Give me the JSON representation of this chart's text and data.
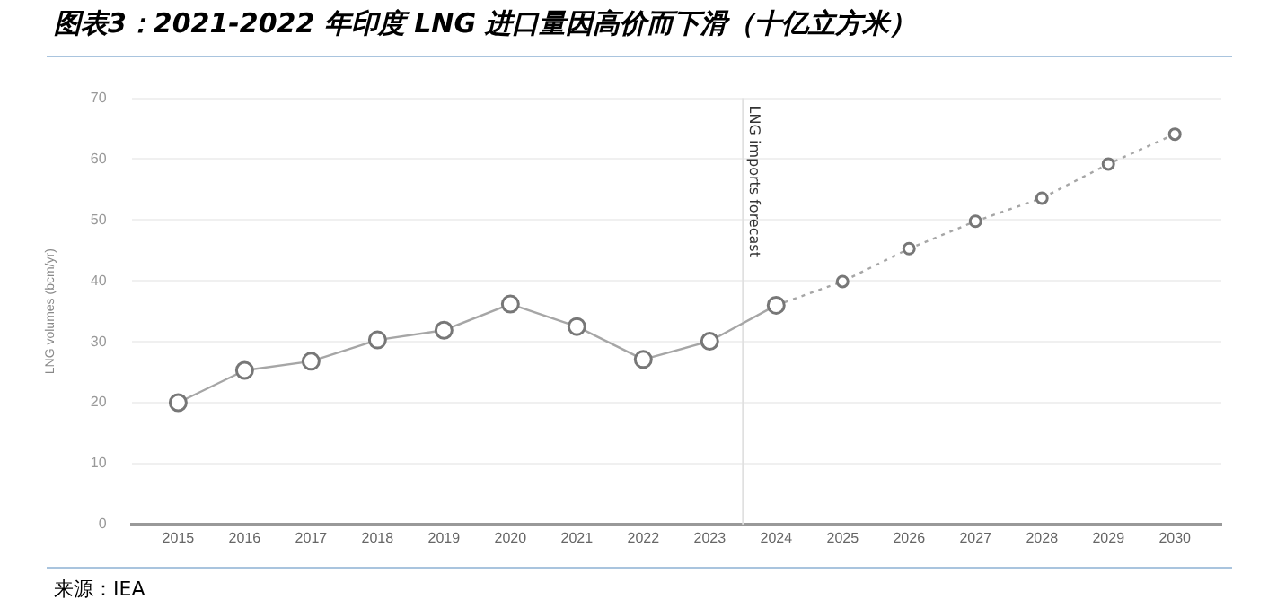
{
  "chart_data": {
    "type": "line",
    "title": "图表3：2021-2022 年印度 LNG 进口量因高价而下滑（十亿立方米）",
    "ylabel": "LNG volumes (bcm/yr)",
    "annotations": [
      "来源：IEA"
    ],
    "series": [
      {
        "color": "#a6a6a6",
        "x": [
          2015,
          2016,
          2017,
          2018,
          2019,
          2020,
          2021,
          2022,
          2023,
          2024
        ],
        "values": [
          20,
          25.3,
          26.8,
          30.3,
          31.9,
          36.2,
          32.5,
          27.1,
          30.1,
          36
        ]
      },
      {
        "color": "#a6a6a6",
        "line_style": "dotted",
        "x": [
          2024,
          2025,
          2026,
          2027,
          2028,
          2029,
          2030
        ],
        "values": [
          36,
          39.9,
          45.3,
          49.8,
          53.6,
          59.2,
          64.1
        ]
      }
    ],
    "xlim": [
      2014.3,
      2030.7
    ],
    "xticks": [
      2015,
      2016,
      2017,
      2018,
      2019,
      2020,
      2021,
      2022,
      2023,
      2024,
      2025,
      2026,
      2027,
      2028,
      2029,
      2030
    ],
    "ylim": [
      0,
      70
    ],
    "yticks": [
      0,
      10,
      20,
      30,
      40,
      50,
      60,
      70
    ],
    "ref_lines": [
      {
        "axis": "x",
        "value": 2023.5,
        "label": "LNG imports forecast",
        "color": "#e0e0e0"
      }
    ],
    "grid": "y",
    "marker": "circle",
    "line_style": "solid",
    "legend": false
  }
}
